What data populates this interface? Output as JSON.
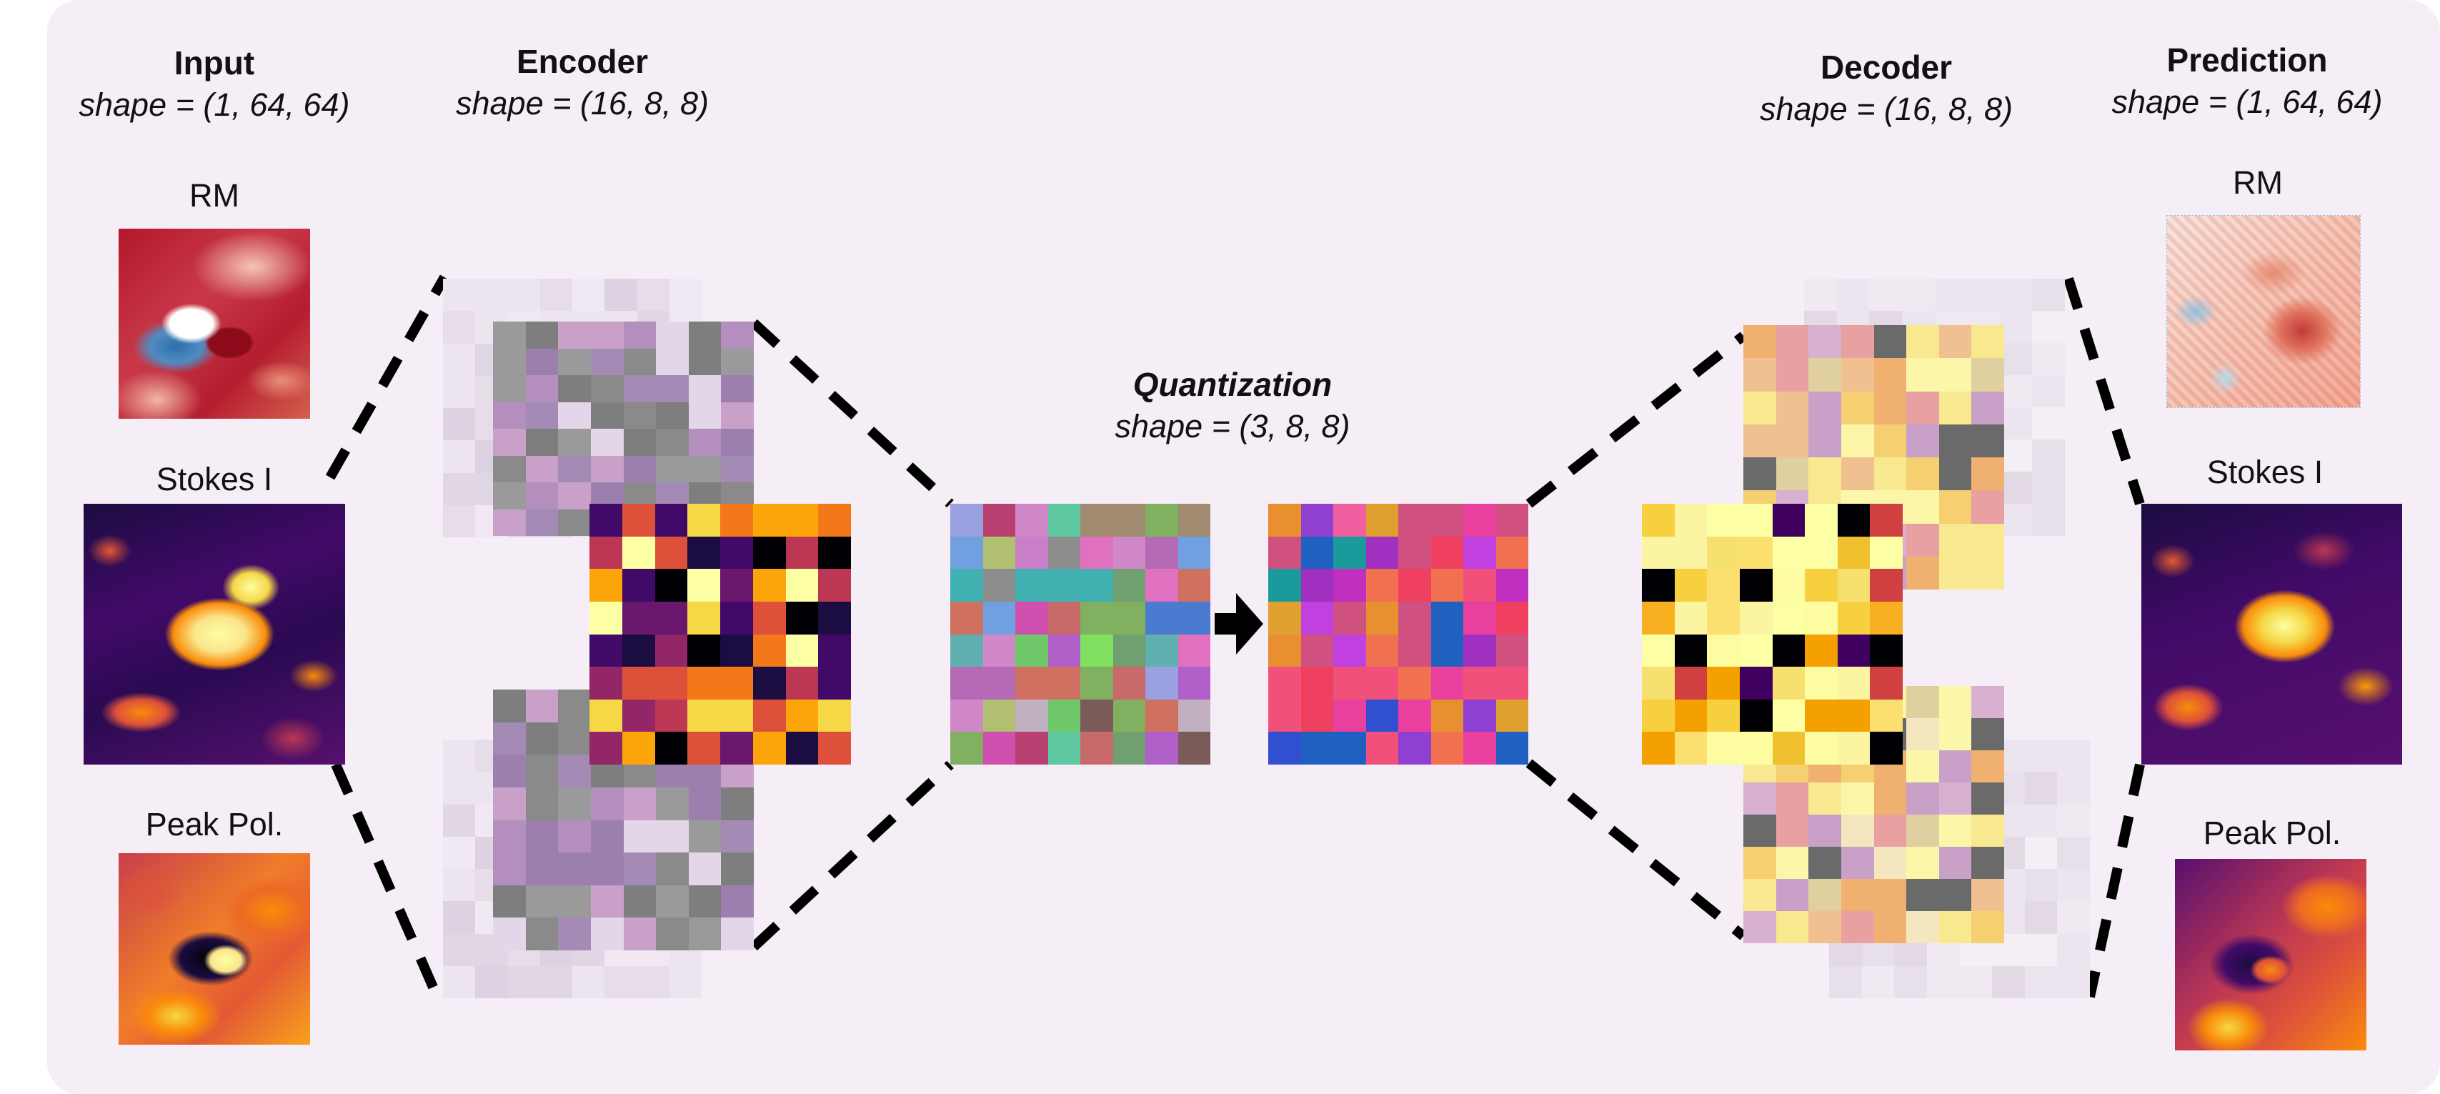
{
  "input": {
    "title": "Input",
    "shape": "shape = (1, 64, 64)",
    "maps": [
      {
        "label": "RM",
        "colormap": "diverging-red-blue"
      },
      {
        "label": "Stokes I",
        "colormap": "inferno"
      },
      {
        "label": "Peak Pol.",
        "colormap": "inferno"
      }
    ]
  },
  "encoder": {
    "title": "Encoder",
    "shape": "shape = (16, 8, 8)"
  },
  "quantization": {
    "title": "Quantization",
    "shape": "shape = (3, 8, 8)"
  },
  "decoder": {
    "title": "Decoder",
    "shape": "shape = (16, 8, 8)"
  },
  "prediction": {
    "title": "Prediction",
    "shape": "shape = (1, 64, 64)",
    "maps": [
      {
        "label": "RM",
        "colormap": "diverging-red-blue"
      },
      {
        "label": "Stokes I",
        "colormap": "inferno"
      },
      {
        "label": "Peak Pol.",
        "colormap": "inferno"
      }
    ]
  },
  "colors": {
    "panel_background": "#f5eef6",
    "dashed_lines": "#000000",
    "arrow": "#000000"
  }
}
